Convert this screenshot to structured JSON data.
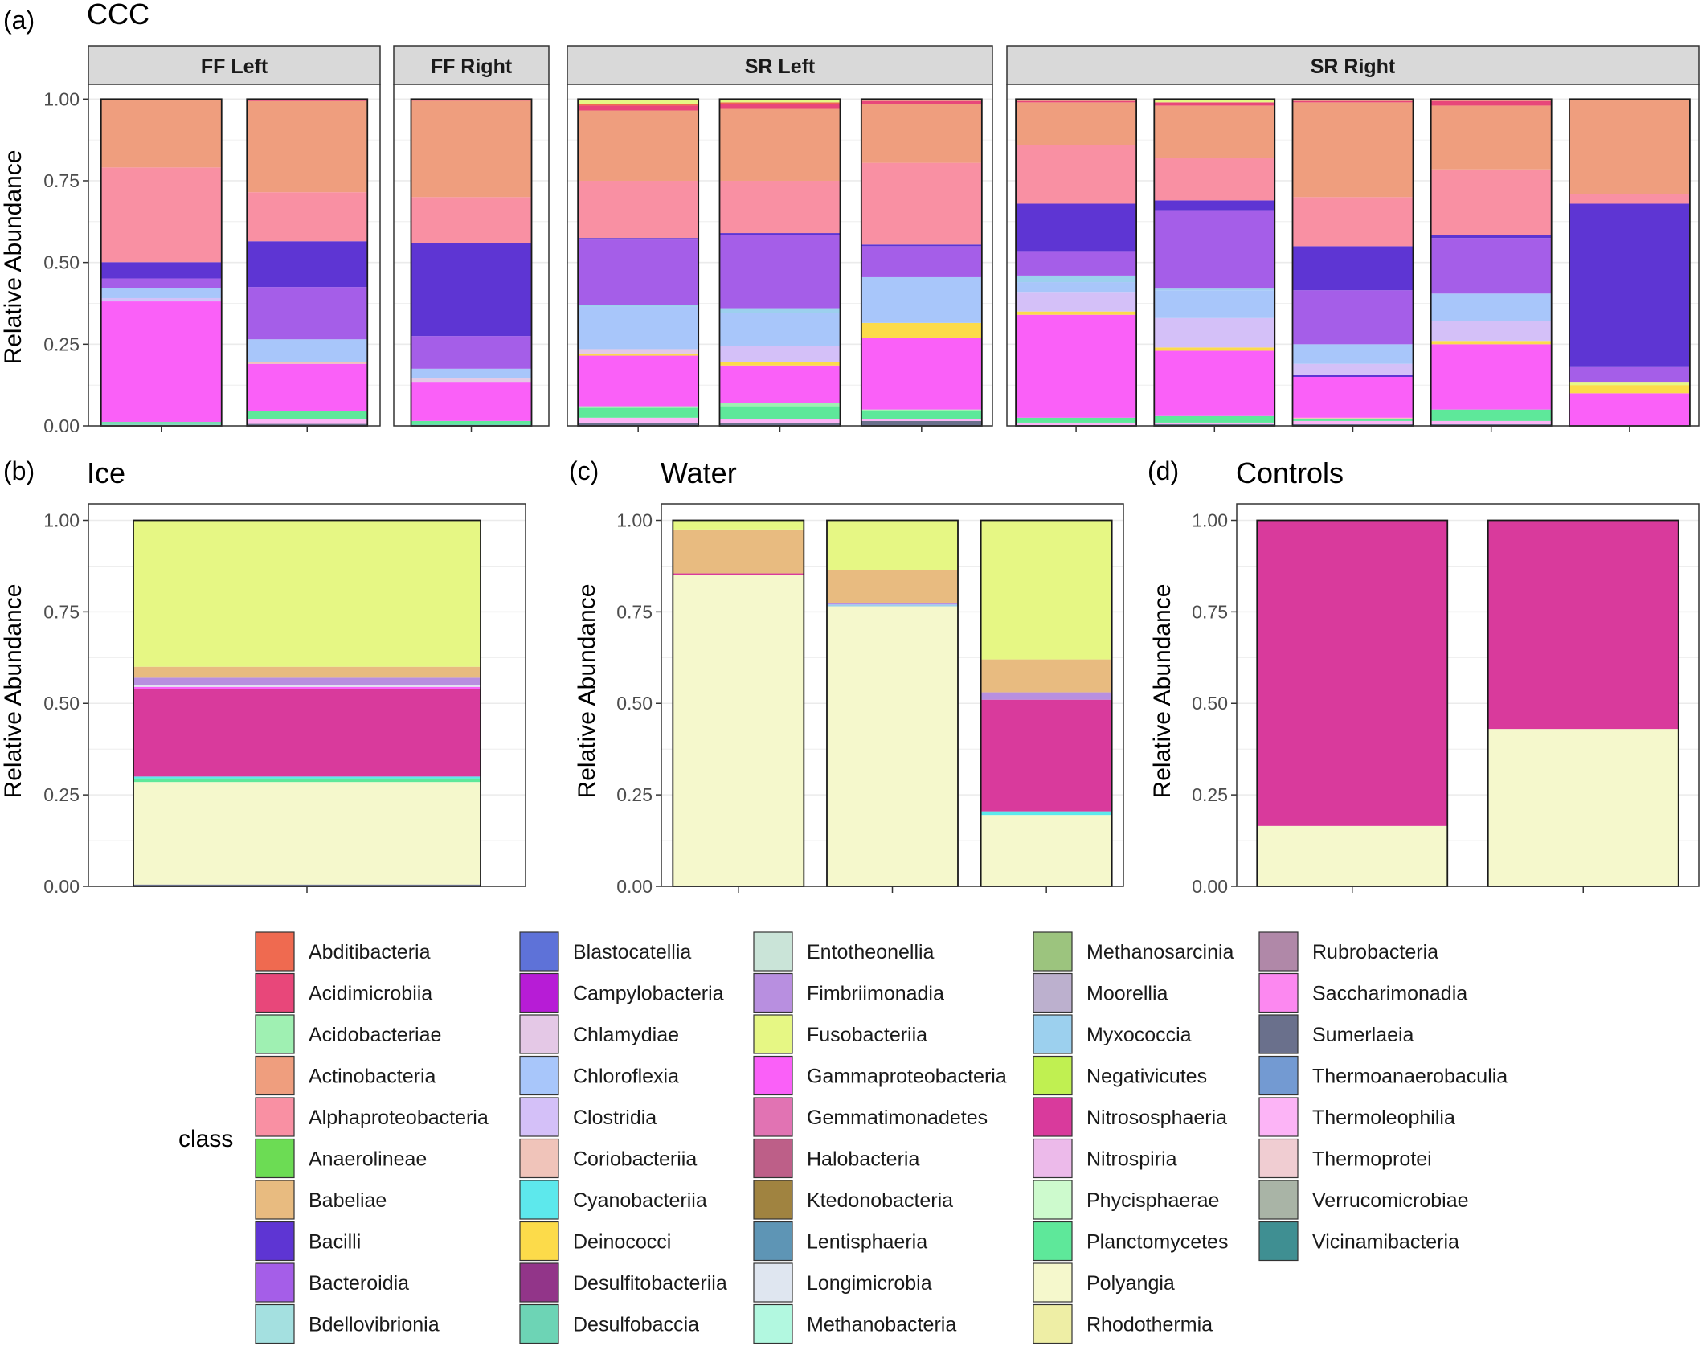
{
  "figure": {
    "y_axis_label": "Relative Abundance",
    "y_ticks": [
      "0.00",
      "0.25",
      "0.50",
      "0.75",
      "1.00"
    ],
    "legend_title": "class"
  },
  "class_colors": {
    "Abditibacteria": "#ef6a50",
    "Acidimicrobiia": "#e8477a",
    "Acidobacteriae": "#9ff0b2",
    "Actinobacteria": "#ef9e7e",
    "Alphaproteobacteria": "#f990a3",
    "Anaerolineae": "#6cdc54",
    "Babeliae": "#e8bb80",
    "Bacilli": "#5e35d3",
    "Bacteroidia": "#a55ee8",
    "Bdellovibrionia": "#a4e0e0",
    "Blastocatellia": "#5e72d8",
    "Campylobacteria": "#b71cd6",
    "Chlamydiae": "#e4c8e6",
    "Chloroflexia": "#a8c6fa",
    "Clostridia": "#d4c0f8",
    "Coriobacteriia": "#f0c4ba",
    "Cyanobacteriia": "#5de8ec",
    "Deinococci": "#fcdb4a",
    "Desulfitobacteriia": "#923589",
    "Desulfobaccia": "#6dd4b5",
    "Entotheonellia": "#cae4d8",
    "Fimbriimonadia": "#b88fe0",
    "Fusobacteriia": "#e6f784",
    "Gammaproteobacteria": "#fa60f8",
    "Gemmatimonadetes": "#e173b3",
    "Halobacteria": "#bd5f88",
    "Ktedonobacteria": "#a08340",
    "Lentisphaeria": "#5e95b5",
    "Longimicrobia": "#dfe6f0",
    "Methanobacteria": "#b2f8e0",
    "Methanosarcinia": "#9cc47e",
    "Moorellia": "#bcb0ce",
    "Myxococcia": "#9cd0ee",
    "Negativicutes": "#c0f051",
    "Nitrososphaeria": "#d93a9c",
    "Nitrospiria": "#ecbaea",
    "Phycisphaerae": "#cdfacd",
    "Planctomycetes": "#5ee89a",
    "Polyangia": "#f5f8cc",
    "Rhodothermia": "#eeeea5",
    "Rubrobacteria": "#b088a8",
    "Saccharimonadia": "#fc88f0",
    "Sumerlaeia": "#6a708c",
    "Thermoanaerobaculia": "#739ad2",
    "Thermoleophilia": "#fcb4f6",
    "Thermoprotei": "#f0cdd2",
    "Verrucomicrobiae": "#a9b4a6",
    "Vicinamibacteria": "#3f8f92"
  },
  "legend_columns": [
    [
      "Abditibacteria",
      "Acidimicrobiia",
      "Acidobacteriae",
      "Actinobacteria",
      "Alphaproteobacteria",
      "Anaerolineae",
      "Babeliae",
      "Bacilli",
      "Bacteroidia",
      "Bdellovibrionia"
    ],
    [
      "Blastocatellia",
      "Campylobacteria",
      "Chlamydiae",
      "Chloroflexia",
      "Clostridia",
      "Coriobacteriia",
      "Cyanobacteriia",
      "Deinococci",
      "Desulfitobacteriia",
      "Desulfobaccia"
    ],
    [
      "Entotheonellia",
      "Fimbriimonadia",
      "Fusobacteriia",
      "Gammaproteobacteria",
      "Gemmatimonadetes",
      "Halobacteria",
      "Ktedonobacteria",
      "Lentisphaeria",
      "Longimicrobia",
      "Methanobacteria"
    ],
    [
      "Methanosarcinia",
      "Moorellia",
      "Myxococcia",
      "Negativicutes",
      "Nitrososphaeria",
      "Nitrospiria",
      "Phycisphaerae",
      "Planctomycetes",
      "Polyangia",
      "Rhodothermia"
    ],
    [
      "Rubrobacteria",
      "Saccharimonadia",
      "Sumerlaeia",
      "Thermoanaerobaculia",
      "Thermoleophilia",
      "Thermoprotei",
      "Verrucomicrobiae",
      "Vicinamibacteria"
    ]
  ],
  "chart_data": [
    {
      "type": "bar",
      "stacked": true,
      "panel_label": "(a)",
      "title": "CCC",
      "ylabel": "Relative Abundance",
      "ylim": [
        0,
        1
      ],
      "grid": true,
      "facets": [
        {
          "strip": "FF Left",
          "bars": [
            [
              [
                "Thermoprotei",
                0.003
              ],
              [
                "Desulfobaccia",
                0.004
              ],
              [
                "Planctomycetes",
                0.005
              ],
              [
                "Gammaproteobacteria",
                0.369
              ],
              [
                "Clostridia",
                0.01
              ],
              [
                "Chloroflexia",
                0.03
              ],
              [
                "Bacteroidia",
                0.03
              ],
              [
                "Bacilli",
                0.05
              ],
              [
                "Alphaproteobacteria",
                0.29
              ],
              [
                "Actinobacteria",
                0.209
              ]
            ],
            [
              [
                "Sumerlaeia",
                0.006
              ],
              [
                "Thermoleophilia",
                0.014
              ],
              [
                "Planctomycetes",
                0.025
              ],
              [
                "Gammaproteobacteria",
                0.145
              ],
              [
                "Coriobacteriia",
                0.005
              ],
              [
                "Chloroflexia",
                0.07
              ],
              [
                "Bacteroidia",
                0.16
              ],
              [
                "Bacilli",
                0.14
              ],
              [
                "Alphaproteobacteria",
                0.15
              ],
              [
                "Actinobacteria",
                0.279
              ],
              [
                "Acidimicrobiia",
                0.006
              ]
            ]
          ]
        },
        {
          "strip": "FF Right",
          "bars": [
            [
              [
                "Desulfobaccia",
                0.005
              ],
              [
                "Planctomycetes",
                0.01
              ],
              [
                "Gammaproteobacteria",
                0.12
              ],
              [
                "Chlamydiae",
                0.01
              ],
              [
                "Chloroflexia",
                0.03
              ],
              [
                "Bacteroidia",
                0.1
              ],
              [
                "Bacilli",
                0.285
              ],
              [
                "Alphaproteobacteria",
                0.14
              ],
              [
                "Actinobacteria",
                0.295
              ],
              [
                "Acidimicrobiia",
                0.005
              ]
            ]
          ]
        },
        {
          "strip": "SR Left",
          "bars": [
            [
              [
                "Sumerlaeia",
                0.01
              ],
              [
                "Thermoleophilia",
                0.015
              ],
              [
                "Planctomycetes",
                0.03
              ],
              [
                "Acidobacteriae",
                0.005
              ],
              [
                "Gammaproteobacteria",
                0.155
              ],
              [
                "Deinococci",
                0.005
              ],
              [
                "Chlamydiae",
                0.015
              ],
              [
                "Chloroflexia",
                0.13
              ],
              [
                "Myxococcia",
                0.005
              ],
              [
                "Bacteroidia",
                0.2
              ],
              [
                "Bacilli",
                0.005
              ],
              [
                "Alphaproteobacteria",
                0.175
              ],
              [
                "Actinobacteria",
                0.215
              ],
              [
                "Acidimicrobiia",
                0.015
              ],
              [
                "Abditibacteria",
                0.005
              ],
              [
                "Fusobacteriia",
                0.015
              ]
            ],
            [
              [
                "Sumerlaeia",
                0.01
              ],
              [
                "Thermoleophilia",
                0.01
              ],
              [
                "Planctomycetes",
                0.04
              ],
              [
                "Acidobacteriae",
                0.01
              ],
              [
                "Gammaproteobacteria",
                0.115
              ],
              [
                "Deinococci",
                0.01
              ],
              [
                "Clostridia",
                0.05
              ],
              [
                "Chloroflexia",
                0.1
              ],
              [
                "Myxococcia",
                0.015
              ],
              [
                "Bacteroidia",
                0.225
              ],
              [
                "Bacilli",
                0.005
              ],
              [
                "Alphaproteobacteria",
                0.16
              ],
              [
                "Actinobacteria",
                0.22
              ],
              [
                "Acidimicrobiia",
                0.015
              ],
              [
                "Abditibacteria",
                0.005
              ],
              [
                "Fusobacteriia",
                0.01
              ]
            ],
            [
              [
                "Sumerlaeia",
                0.015
              ],
              [
                "Thermoleophilia",
                0.005
              ],
              [
                "Planctomycetes",
                0.025
              ],
              [
                "Acidobacteriae",
                0.005
              ],
              [
                "Gammaproteobacteria",
                0.22
              ],
              [
                "Deinococci",
                0.045
              ],
              [
                "Chloroflexia",
                0.14
              ],
              [
                "Bacteroidia",
                0.095
              ],
              [
                "Bacilli",
                0.005
              ],
              [
                "Alphaproteobacteria",
                0.25
              ],
              [
                "Actinobacteria",
                0.18
              ],
              [
                "Acidimicrobiia",
                0.01
              ],
              [
                "Fusobacteriia",
                0.005
              ]
            ]
          ]
        },
        {
          "strip": "SR Right",
          "bars": [
            [
              [
                "Thermoleophilia",
                0.01
              ],
              [
                "Planctomycetes",
                0.015
              ],
              [
                "Gammaproteobacteria",
                0.315
              ],
              [
                "Deinococci",
                0.01
              ],
              [
                "Clostridia",
                0.06
              ],
              [
                "Chloroflexia",
                0.03
              ],
              [
                "Myxococcia",
                0.02
              ],
              [
                "Bacteroidia",
                0.075
              ],
              [
                "Bacilli",
                0.145
              ],
              [
                "Alphaproteobacteria",
                0.18
              ],
              [
                "Actinobacteria",
                0.13
              ],
              [
                "Acidimicrobiia",
                0.005
              ],
              [
                "Fusobacteriia",
                0.005
              ]
            ],
            [
              [
                "Sumerlaeia",
                0.005
              ],
              [
                "Thermoleophilia",
                0.005
              ],
              [
                "Planctomycetes",
                0.02
              ],
              [
                "Gammaproteobacteria",
                0.2
              ],
              [
                "Deinococci",
                0.01
              ],
              [
                "Clostridia",
                0.09
              ],
              [
                "Chloroflexia",
                0.085
              ],
              [
                "Myxococcia",
                0.005
              ],
              [
                "Bacteroidia",
                0.24
              ],
              [
                "Bacilli",
                0.03
              ],
              [
                "Alphaproteobacteria",
                0.13
              ],
              [
                "Actinobacteria",
                0.16
              ],
              [
                "Acidimicrobiia",
                0.01
              ],
              [
                "Fusobacteriia",
                0.01
              ]
            ],
            [
              [
                "Sumerlaeia",
                0.005
              ],
              [
                "Thermoleophilia",
                0.01
              ],
              [
                "Planctomycetes",
                0.005
              ],
              [
                "Coriobacteriia",
                0.005
              ],
              [
                "Gammaproteobacteria",
                0.125
              ],
              [
                "Bacilli",
                0.005
              ],
              [
                "Clostridia",
                0.035
              ],
              [
                "Chloroflexia",
                0.06
              ],
              [
                "Bacteroidia",
                0.165
              ],
              [
                "Bacilli",
                0.135
              ],
              [
                "Alphaproteobacteria",
                0.15
              ],
              [
                "Actinobacteria",
                0.29
              ],
              [
                "Acidimicrobiia",
                0.005
              ],
              [
                "Fusobacteriia",
                0.005
              ]
            ],
            [
              [
                "Sumerlaeia",
                0.005
              ],
              [
                "Thermoleophilia",
                0.01
              ],
              [
                "Planctomycetes",
                0.035
              ],
              [
                "Gammaproteobacteria",
                0.2
              ],
              [
                "Deinococci",
                0.01
              ],
              [
                "Clostridia",
                0.06
              ],
              [
                "Chloroflexia",
                0.085
              ],
              [
                "Bacteroidia",
                0.17
              ],
              [
                "Bacilli",
                0.01
              ],
              [
                "Alphaproteobacteria",
                0.2
              ],
              [
                "Actinobacteria",
                0.195
              ],
              [
                "Acidimicrobiia",
                0.015
              ],
              [
                "Fusobacteriia",
                0.005
              ]
            ],
            [
              [
                "Gammaproteobacteria",
                0.1
              ],
              [
                "Deinococci",
                0.025
              ],
              [
                "Fusobacteriia",
                0.01
              ],
              [
                "Bacteroidia",
                0.045
              ],
              [
                "Bacilli",
                0.5
              ],
              [
                "Alphaproteobacteria",
                0.03
              ],
              [
                "Actinobacteria",
                0.29
              ]
            ]
          ]
        }
      ]
    },
    {
      "type": "bar",
      "stacked": true,
      "panel_label": "(b)",
      "title": "Ice",
      "ylabel": "Relative Abundance",
      "ylim": [
        0,
        1
      ],
      "grid": true,
      "bars": [
        [
          [
            "Sumerlaeia",
            0.005
          ],
          [
            "Polyangia",
            0.28
          ],
          [
            "Planctomycetes",
            0.01
          ],
          [
            "Cyanobacteriia",
            0.005
          ],
          [
            "Nitrososphaeria",
            0.24
          ],
          [
            "Gammaproteobacteria",
            0.005
          ],
          [
            "Longimicrobia",
            0.005
          ],
          [
            "Fimbriimonadia",
            0.02
          ],
          [
            "Babeliae",
            0.03
          ],
          [
            "Fusobacteriia",
            0.4
          ]
        ]
      ]
    },
    {
      "type": "bar",
      "stacked": true,
      "panel_label": "(c)",
      "title": "Water",
      "ylabel": "Relative Abundance",
      "ylim": [
        0,
        1
      ],
      "grid": true,
      "bars": [
        [
          [
            "Polyangia",
            0.85
          ],
          [
            "Nitrososphaeria",
            0.005
          ],
          [
            "Babeliae",
            0.12
          ],
          [
            "Fusobacteriia",
            0.025
          ]
        ],
        [
          [
            "Polyangia",
            0.765
          ],
          [
            "Myxococcia",
            0.005
          ],
          [
            "Fimbriimonadia",
            0.005
          ],
          [
            "Babeliae",
            0.09
          ],
          [
            "Fusobacteriia",
            0.135
          ]
        ],
        [
          [
            "Polyangia",
            0.195
          ],
          [
            "Cyanobacteriia",
            0.01
          ],
          [
            "Nitrososphaeria",
            0.305
          ],
          [
            "Fimbriimonadia",
            0.02
          ],
          [
            "Babeliae",
            0.09
          ],
          [
            "Fusobacteriia",
            0.38
          ]
        ]
      ]
    },
    {
      "type": "bar",
      "stacked": true,
      "panel_label": "(d)",
      "title": "Controls",
      "ylabel": "Relative Abundance",
      "ylim": [
        0,
        1
      ],
      "grid": true,
      "bars": [
        [
          [
            "Polyangia",
            0.165
          ],
          [
            "Nitrososphaeria",
            0.835
          ]
        ],
        [
          [
            "Polyangia",
            0.43
          ],
          [
            "Nitrososphaeria",
            0.57
          ]
        ]
      ]
    }
  ]
}
